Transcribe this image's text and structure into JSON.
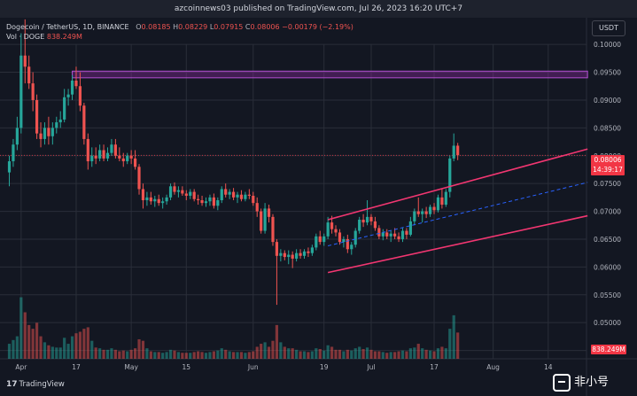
{
  "caption": "azcoinnews03 published on TradingView.com, Jul 26, 2023 16:20 UTC+7",
  "header": {
    "symbol": "Dogecoin / TetherUS, 1D, BINANCE",
    "o_label": "O",
    "o_value": "0.08185",
    "h_label": "H",
    "h_value": "0.08229",
    "l_label": "L",
    "l_value": "0.07915",
    "c_label": "C",
    "c_value": "0.08006",
    "change": "−0.00179 (−2.19%)",
    "vol_label": "Vol · DOGE",
    "vol_value": "838.249M"
  },
  "currency_button": "USDT",
  "price_badge": {
    "price": "0.08006",
    "countdown": "14:39:17"
  },
  "volume_badge": "838.249M",
  "logo": {
    "mark": "17",
    "text": "TradingView"
  },
  "watermark": "非小号",
  "colors": {
    "background": "#131722",
    "grid": "#2a2e39",
    "up": "#26a69a",
    "down": "#ef5350",
    "channel": "#f23671",
    "midline": "#2962ff",
    "zone": "#9c27b0",
    "price_line": "#f23645"
  },
  "chart_data": {
    "type": "candlestick",
    "timeframe": "1D",
    "y_axis": {
      "range": [
        0.0435,
        0.1048
      ],
      "ticks": [
        "0.10000",
        "0.09500",
        "0.09000",
        "0.08500",
        "0.08000",
        "0.07500",
        "0.07000",
        "0.06500",
        "0.06000",
        "0.05500",
        "0.05000",
        "0.04500"
      ]
    },
    "x_axis": {
      "ticks": [
        {
          "day": 3,
          "label": "Apr"
        },
        {
          "day": 17,
          "label": "17"
        },
        {
          "day": 31,
          "label": "May"
        },
        {
          "day": 45,
          "label": "15"
        },
        {
          "day": 62,
          "label": "Jun"
        },
        {
          "day": 80,
          "label": "19"
        },
        {
          "day": 92,
          "label": "Jul"
        },
        {
          "day": 108,
          "label": "17"
        },
        {
          "day": 123,
          "label": "Aug"
        },
        {
          "day": 137,
          "label": "14"
        }
      ]
    },
    "candles": [
      {
        "d": 0,
        "o": 0.077,
        "h": 0.08,
        "l": 0.0745,
        "c": 0.079,
        "v": 20
      },
      {
        "d": 1,
        "o": 0.079,
        "h": 0.083,
        "l": 0.078,
        "c": 0.082,
        "v": 25
      },
      {
        "d": 2,
        "o": 0.082,
        "h": 0.087,
        "l": 0.081,
        "c": 0.085,
        "v": 30
      },
      {
        "d": 3,
        "o": 0.085,
        "h": 0.102,
        "l": 0.084,
        "c": 0.098,
        "v": 82
      },
      {
        "d": 4,
        "o": 0.098,
        "h": 0.1045,
        "l": 0.093,
        "c": 0.096,
        "v": 62
      },
      {
        "d": 5,
        "o": 0.096,
        "h": 0.098,
        "l": 0.092,
        "c": 0.093,
        "v": 45
      },
      {
        "d": 6,
        "o": 0.093,
        "h": 0.095,
        "l": 0.088,
        "c": 0.09,
        "v": 40
      },
      {
        "d": 7,
        "o": 0.09,
        "h": 0.091,
        "l": 0.083,
        "c": 0.084,
        "v": 48
      },
      {
        "d": 8,
        "o": 0.084,
        "h": 0.086,
        "l": 0.0815,
        "c": 0.083,
        "v": 30
      },
      {
        "d": 9,
        "o": 0.083,
        "h": 0.086,
        "l": 0.082,
        "c": 0.085,
        "v": 22
      },
      {
        "d": 10,
        "o": 0.085,
        "h": 0.087,
        "l": 0.082,
        "c": 0.0835,
        "v": 18
      },
      {
        "d": 11,
        "o": 0.0835,
        "h": 0.086,
        "l": 0.082,
        "c": 0.085,
        "v": 16
      },
      {
        "d": 12,
        "o": 0.085,
        "h": 0.087,
        "l": 0.084,
        "c": 0.086,
        "v": 15
      },
      {
        "d": 13,
        "o": 0.086,
        "h": 0.088,
        "l": 0.085,
        "c": 0.0865,
        "v": 15
      },
      {
        "d": 14,
        "o": 0.0865,
        "h": 0.092,
        "l": 0.086,
        "c": 0.0905,
        "v": 28
      },
      {
        "d": 15,
        "o": 0.0905,
        "h": 0.092,
        "l": 0.089,
        "c": 0.091,
        "v": 20
      },
      {
        "d": 16,
        "o": 0.091,
        "h": 0.0945,
        "l": 0.09,
        "c": 0.0935,
        "v": 30
      },
      {
        "d": 17,
        "o": 0.0935,
        "h": 0.096,
        "l": 0.092,
        "c": 0.0925,
        "v": 34
      },
      {
        "d": 18,
        "o": 0.0925,
        "h": 0.095,
        "l": 0.088,
        "c": 0.089,
        "v": 36
      },
      {
        "d": 19,
        "o": 0.089,
        "h": 0.0895,
        "l": 0.082,
        "c": 0.083,
        "v": 40
      },
      {
        "d": 20,
        "o": 0.083,
        "h": 0.084,
        "l": 0.0775,
        "c": 0.079,
        "v": 42
      },
      {
        "d": 21,
        "o": 0.079,
        "h": 0.0815,
        "l": 0.078,
        "c": 0.08,
        "v": 24
      },
      {
        "d": 22,
        "o": 0.08,
        "h": 0.0815,
        "l": 0.0785,
        "c": 0.0795,
        "v": 15
      },
      {
        "d": 23,
        "o": 0.0795,
        "h": 0.082,
        "l": 0.079,
        "c": 0.081,
        "v": 14
      },
      {
        "d": 24,
        "o": 0.081,
        "h": 0.082,
        "l": 0.079,
        "c": 0.0795,
        "v": 12
      },
      {
        "d": 25,
        "o": 0.0795,
        "h": 0.0815,
        "l": 0.079,
        "c": 0.0805,
        "v": 12
      },
      {
        "d": 26,
        "o": 0.0805,
        "h": 0.083,
        "l": 0.08,
        "c": 0.082,
        "v": 14
      },
      {
        "d": 27,
        "o": 0.082,
        "h": 0.083,
        "l": 0.0795,
        "c": 0.08,
        "v": 12
      },
      {
        "d": 28,
        "o": 0.08,
        "h": 0.0815,
        "l": 0.079,
        "c": 0.0795,
        "v": 10
      },
      {
        "d": 29,
        "o": 0.0795,
        "h": 0.0805,
        "l": 0.078,
        "c": 0.079,
        "v": 11
      },
      {
        "d": 30,
        "o": 0.079,
        "h": 0.0805,
        "l": 0.0785,
        "c": 0.08,
        "v": 10
      },
      {
        "d": 31,
        "o": 0.08,
        "h": 0.081,
        "l": 0.0785,
        "c": 0.0795,
        "v": 12
      },
      {
        "d": 32,
        "o": 0.0795,
        "h": 0.081,
        "l": 0.0775,
        "c": 0.078,
        "v": 14
      },
      {
        "d": 33,
        "o": 0.078,
        "h": 0.0785,
        "l": 0.073,
        "c": 0.074,
        "v": 26
      },
      {
        "d": 34,
        "o": 0.074,
        "h": 0.075,
        "l": 0.0705,
        "c": 0.072,
        "v": 24
      },
      {
        "d": 35,
        "o": 0.072,
        "h": 0.0735,
        "l": 0.071,
        "c": 0.0725,
        "v": 14
      },
      {
        "d": 36,
        "o": 0.0725,
        "h": 0.0735,
        "l": 0.0712,
        "c": 0.0718,
        "v": 10
      },
      {
        "d": 37,
        "o": 0.0718,
        "h": 0.0728,
        "l": 0.0708,
        "c": 0.0722,
        "v": 9
      },
      {
        "d": 38,
        "o": 0.0722,
        "h": 0.073,
        "l": 0.071,
        "c": 0.0715,
        "v": 9
      },
      {
        "d": 39,
        "o": 0.0715,
        "h": 0.0725,
        "l": 0.0705,
        "c": 0.0718,
        "v": 8
      },
      {
        "d": 40,
        "o": 0.0718,
        "h": 0.073,
        "l": 0.0712,
        "c": 0.0725,
        "v": 9
      },
      {
        "d": 41,
        "o": 0.0725,
        "h": 0.075,
        "l": 0.072,
        "c": 0.0745,
        "v": 12
      },
      {
        "d": 42,
        "o": 0.0745,
        "h": 0.0752,
        "l": 0.073,
        "c": 0.0735,
        "v": 11
      },
      {
        "d": 43,
        "o": 0.0735,
        "h": 0.0745,
        "l": 0.0725,
        "c": 0.0738,
        "v": 9
      },
      {
        "d": 44,
        "o": 0.0738,
        "h": 0.0745,
        "l": 0.0728,
        "c": 0.0732,
        "v": 8
      },
      {
        "d": 45,
        "o": 0.0732,
        "h": 0.0738,
        "l": 0.072,
        "c": 0.0728,
        "v": 8
      },
      {
        "d": 46,
        "o": 0.0728,
        "h": 0.074,
        "l": 0.0722,
        "c": 0.0735,
        "v": 8
      },
      {
        "d": 47,
        "o": 0.0735,
        "h": 0.074,
        "l": 0.0718,
        "c": 0.0722,
        "v": 9
      },
      {
        "d": 48,
        "o": 0.0722,
        "h": 0.073,
        "l": 0.0712,
        "c": 0.072,
        "v": 10
      },
      {
        "d": 49,
        "o": 0.072,
        "h": 0.0728,
        "l": 0.071,
        "c": 0.0715,
        "v": 9
      },
      {
        "d": 50,
        "o": 0.0715,
        "h": 0.0725,
        "l": 0.0708,
        "c": 0.0718,
        "v": 8
      },
      {
        "d": 51,
        "o": 0.0718,
        "h": 0.073,
        "l": 0.071,
        "c": 0.0725,
        "v": 9
      },
      {
        "d": 52,
        "o": 0.0725,
        "h": 0.0732,
        "l": 0.0705,
        "c": 0.071,
        "v": 10
      },
      {
        "d": 53,
        "o": 0.071,
        "h": 0.0725,
        "l": 0.0702,
        "c": 0.072,
        "v": 11
      },
      {
        "d": 54,
        "o": 0.072,
        "h": 0.0745,
        "l": 0.0715,
        "c": 0.074,
        "v": 14
      },
      {
        "d": 55,
        "o": 0.074,
        "h": 0.075,
        "l": 0.0725,
        "c": 0.073,
        "v": 12
      },
      {
        "d": 56,
        "o": 0.073,
        "h": 0.074,
        "l": 0.0722,
        "c": 0.0735,
        "v": 10
      },
      {
        "d": 57,
        "o": 0.0735,
        "h": 0.0742,
        "l": 0.072,
        "c": 0.0725,
        "v": 9
      },
      {
        "d": 58,
        "o": 0.0725,
        "h": 0.0735,
        "l": 0.0715,
        "c": 0.073,
        "v": 9
      },
      {
        "d": 59,
        "o": 0.073,
        "h": 0.0738,
        "l": 0.0718,
        "c": 0.0722,
        "v": 9
      },
      {
        "d": 60,
        "o": 0.0722,
        "h": 0.0735,
        "l": 0.0718,
        "c": 0.073,
        "v": 8
      },
      {
        "d": 61,
        "o": 0.073,
        "h": 0.074,
        "l": 0.0722,
        "c": 0.0728,
        "v": 9
      },
      {
        "d": 62,
        "o": 0.0728,
        "h": 0.0735,
        "l": 0.071,
        "c": 0.0715,
        "v": 10
      },
      {
        "d": 63,
        "o": 0.0715,
        "h": 0.0725,
        "l": 0.069,
        "c": 0.07,
        "v": 16
      },
      {
        "d": 64,
        "o": 0.07,
        "h": 0.0705,
        "l": 0.066,
        "c": 0.0665,
        "v": 20
      },
      {
        "d": 65,
        "o": 0.0665,
        "h": 0.0715,
        "l": 0.066,
        "c": 0.0705,
        "v": 22
      },
      {
        "d": 66,
        "o": 0.0705,
        "h": 0.0712,
        "l": 0.068,
        "c": 0.069,
        "v": 16
      },
      {
        "d": 67,
        "o": 0.069,
        "h": 0.0695,
        "l": 0.0638,
        "c": 0.0645,
        "v": 24
      },
      {
        "d": 68,
        "o": 0.0645,
        "h": 0.065,
        "l": 0.0532,
        "c": 0.062,
        "v": 45
      },
      {
        "d": 69,
        "o": 0.062,
        "h": 0.0632,
        "l": 0.061,
        "c": 0.0625,
        "v": 22
      },
      {
        "d": 70,
        "o": 0.0625,
        "h": 0.063,
        "l": 0.0612,
        "c": 0.0618,
        "v": 16
      },
      {
        "d": 71,
        "o": 0.0618,
        "h": 0.063,
        "l": 0.0605,
        "c": 0.0622,
        "v": 14
      },
      {
        "d": 72,
        "o": 0.0622,
        "h": 0.0628,
        "l": 0.0598,
        "c": 0.0615,
        "v": 14
      },
      {
        "d": 73,
        "o": 0.0615,
        "h": 0.0632,
        "l": 0.061,
        "c": 0.0625,
        "v": 12
      },
      {
        "d": 74,
        "o": 0.0625,
        "h": 0.0632,
        "l": 0.0615,
        "c": 0.062,
        "v": 10
      },
      {
        "d": 75,
        "o": 0.062,
        "h": 0.0632,
        "l": 0.0615,
        "c": 0.0628,
        "v": 10
      },
      {
        "d": 76,
        "o": 0.0628,
        "h": 0.0635,
        "l": 0.0618,
        "c": 0.0625,
        "v": 9
      },
      {
        "d": 77,
        "o": 0.0625,
        "h": 0.064,
        "l": 0.062,
        "c": 0.0635,
        "v": 10
      },
      {
        "d": 78,
        "o": 0.0635,
        "h": 0.066,
        "l": 0.063,
        "c": 0.0655,
        "v": 14
      },
      {
        "d": 79,
        "o": 0.0655,
        "h": 0.0665,
        "l": 0.064,
        "c": 0.0645,
        "v": 13
      },
      {
        "d": 80,
        "o": 0.0645,
        "h": 0.066,
        "l": 0.0638,
        "c": 0.0655,
        "v": 11
      },
      {
        "d": 81,
        "o": 0.0655,
        "h": 0.069,
        "l": 0.065,
        "c": 0.068,
        "v": 18
      },
      {
        "d": 82,
        "o": 0.068,
        "h": 0.0692,
        "l": 0.066,
        "c": 0.0668,
        "v": 16
      },
      {
        "d": 83,
        "o": 0.0668,
        "h": 0.0675,
        "l": 0.0655,
        "c": 0.0662,
        "v": 12
      },
      {
        "d": 84,
        "o": 0.0662,
        "h": 0.0668,
        "l": 0.064,
        "c": 0.0645,
        "v": 12
      },
      {
        "d": 85,
        "o": 0.0645,
        "h": 0.0655,
        "l": 0.0635,
        "c": 0.065,
        "v": 10
      },
      {
        "d": 86,
        "o": 0.065,
        "h": 0.0658,
        "l": 0.0625,
        "c": 0.0632,
        "v": 12
      },
      {
        "d": 87,
        "o": 0.0632,
        "h": 0.0645,
        "l": 0.0622,
        "c": 0.064,
        "v": 11
      },
      {
        "d": 88,
        "o": 0.064,
        "h": 0.067,
        "l": 0.0635,
        "c": 0.0665,
        "v": 14
      },
      {
        "d": 89,
        "o": 0.0665,
        "h": 0.069,
        "l": 0.066,
        "c": 0.0685,
        "v": 16
      },
      {
        "d": 90,
        "o": 0.0685,
        "h": 0.0695,
        "l": 0.0672,
        "c": 0.068,
        "v": 13
      },
      {
        "d": 91,
        "o": 0.068,
        "h": 0.072,
        "l": 0.0675,
        "c": 0.069,
        "v": 15
      },
      {
        "d": 92,
        "o": 0.069,
        "h": 0.0695,
        "l": 0.0675,
        "c": 0.0682,
        "v": 12
      },
      {
        "d": 93,
        "o": 0.0682,
        "h": 0.069,
        "l": 0.0665,
        "c": 0.067,
        "v": 10
      },
      {
        "d": 94,
        "o": 0.067,
        "h": 0.0675,
        "l": 0.065,
        "c": 0.0655,
        "v": 10
      },
      {
        "d": 95,
        "o": 0.0655,
        "h": 0.0668,
        "l": 0.0648,
        "c": 0.0662,
        "v": 9
      },
      {
        "d": 96,
        "o": 0.0662,
        "h": 0.0668,
        "l": 0.065,
        "c": 0.0655,
        "v": 8
      },
      {
        "d": 97,
        "o": 0.0655,
        "h": 0.0665,
        "l": 0.0645,
        "c": 0.066,
        "v": 9
      },
      {
        "d": 98,
        "o": 0.066,
        "h": 0.067,
        "l": 0.065,
        "c": 0.0655,
        "v": 9
      },
      {
        "d": 99,
        "o": 0.0655,
        "h": 0.0662,
        "l": 0.0645,
        "c": 0.065,
        "v": 10
      },
      {
        "d": 100,
        "o": 0.065,
        "h": 0.067,
        "l": 0.0645,
        "c": 0.0665,
        "v": 11
      },
      {
        "d": 101,
        "o": 0.0665,
        "h": 0.067,
        "l": 0.065,
        "c": 0.0658,
        "v": 10
      },
      {
        "d": 102,
        "o": 0.0658,
        "h": 0.069,
        "l": 0.0655,
        "c": 0.0682,
        "v": 14
      },
      {
        "d": 103,
        "o": 0.0682,
        "h": 0.0705,
        "l": 0.0675,
        "c": 0.07,
        "v": 15
      },
      {
        "d": 104,
        "o": 0.07,
        "h": 0.0725,
        "l": 0.069,
        "c": 0.0695,
        "v": 20
      },
      {
        "d": 105,
        "o": 0.0695,
        "h": 0.0705,
        "l": 0.068,
        "c": 0.07,
        "v": 14
      },
      {
        "d": 106,
        "o": 0.07,
        "h": 0.0708,
        "l": 0.0688,
        "c": 0.0695,
        "v": 12
      },
      {
        "d": 107,
        "o": 0.0695,
        "h": 0.0712,
        "l": 0.069,
        "c": 0.0708,
        "v": 11
      },
      {
        "d": 108,
        "o": 0.0708,
        "h": 0.0715,
        "l": 0.0695,
        "c": 0.0702,
        "v": 10
      },
      {
        "d": 109,
        "o": 0.0702,
        "h": 0.073,
        "l": 0.0698,
        "c": 0.0725,
        "v": 14
      },
      {
        "d": 110,
        "o": 0.0725,
        "h": 0.074,
        "l": 0.0705,
        "c": 0.0712,
        "v": 16
      },
      {
        "d": 111,
        "o": 0.0712,
        "h": 0.074,
        "l": 0.0708,
        "c": 0.0735,
        "v": 14
      },
      {
        "d": 112,
        "o": 0.0735,
        "h": 0.08,
        "l": 0.0725,
        "c": 0.0795,
        "v": 40
      },
      {
        "d": 113,
        "o": 0.0795,
        "h": 0.084,
        "l": 0.079,
        "c": 0.0818,
        "v": 58
      },
      {
        "d": 114,
        "o": 0.0818,
        "h": 0.0823,
        "l": 0.0792,
        "c": 0.0801,
        "v": 35
      }
    ],
    "annotations": [
      {
        "type": "resistance-zone",
        "price_range": [
          0.094,
          0.0952
        ],
        "days": [
          16,
          147
        ]
      },
      {
        "type": "channel-upper",
        "from": {
          "d": 81,
          "p": 0.0685
        },
        "to": {
          "d": 147,
          "p": 0.0812
        }
      },
      {
        "type": "channel-lower",
        "from": {
          "d": 81,
          "p": 0.059
        },
        "to": {
          "d": 147,
          "p": 0.0692
        }
      },
      {
        "type": "channel-midline",
        "from": {
          "d": 81,
          "p": 0.0638
        },
        "to": {
          "d": 147,
          "p": 0.0752
        }
      },
      {
        "type": "price-line",
        "price": 0.08006
      }
    ],
    "volume_max_ref": 85,
    "grid": true
  }
}
